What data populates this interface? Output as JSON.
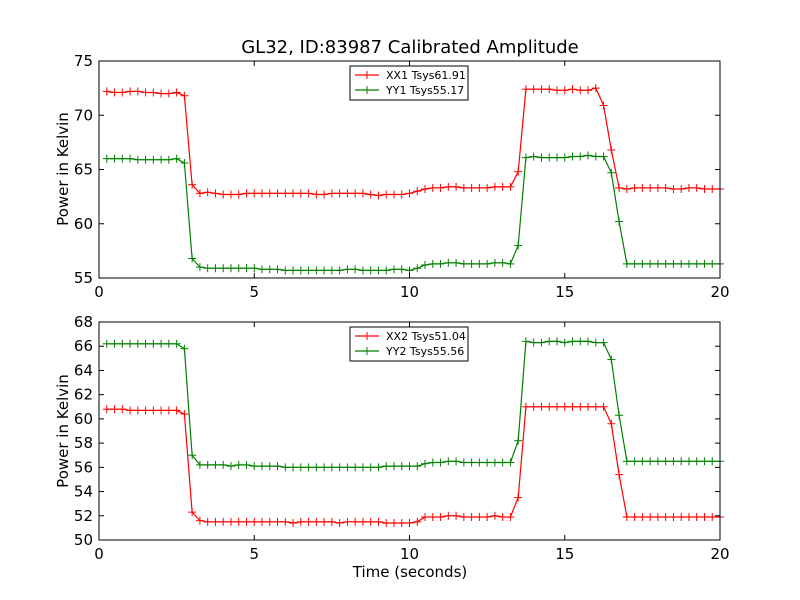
{
  "chart_data": [
    {
      "type": "line",
      "title": "GL32, ID:83987 Calibrated Amplitude",
      "xlabel": "",
      "ylabel": "Power in Kelvin",
      "xlim": [
        0,
        20
      ],
      "ylim": [
        55,
        75
      ],
      "xticks": [
        "0",
        "5",
        "10",
        "15",
        "20"
      ],
      "yticks": [
        "55",
        "60",
        "65",
        "70",
        "75"
      ],
      "legend_position": "top-center",
      "series": [
        {
          "name": "XX1 Tsys61.91",
          "color": "#ff0000",
          "x": [
            0.25,
            0.5,
            0.75,
            1.0,
            1.25,
            1.5,
            1.75,
            2.0,
            2.25,
            2.5,
            2.75,
            3.0,
            3.25,
            3.5,
            3.75,
            4.0,
            4.25,
            4.5,
            4.75,
            5.0,
            5.25,
            5.5,
            5.75,
            6.0,
            6.25,
            6.5,
            6.75,
            7.0,
            7.25,
            7.5,
            7.75,
            8.0,
            8.25,
            8.5,
            8.75,
            9.0,
            9.25,
            9.5,
            9.75,
            10.0,
            10.25,
            10.5,
            10.75,
            11.0,
            11.25,
            11.5,
            11.75,
            12.0,
            12.25,
            12.5,
            12.75,
            13.0,
            13.25,
            13.5,
            13.75,
            14.0,
            14.25,
            14.5,
            14.75,
            15.0,
            15.25,
            15.5,
            15.75,
            16.0,
            16.25,
            16.5,
            16.75,
            17.0,
            17.25,
            17.5,
            17.75,
            18.0,
            18.25,
            18.5,
            18.75,
            19.0,
            19.25,
            19.5,
            19.75,
            20.0
          ],
          "values": [
            72.2,
            72.1,
            72.1,
            72.2,
            72.2,
            72.1,
            72.1,
            72.0,
            72.0,
            72.1,
            71.8,
            63.6,
            62.8,
            62.9,
            62.8,
            62.7,
            62.7,
            62.7,
            62.8,
            62.8,
            62.8,
            62.8,
            62.8,
            62.8,
            62.8,
            62.8,
            62.8,
            62.7,
            62.7,
            62.8,
            62.8,
            62.8,
            62.8,
            62.8,
            62.7,
            62.6,
            62.7,
            62.7,
            62.7,
            62.8,
            63.0,
            63.2,
            63.3,
            63.3,
            63.4,
            63.4,
            63.3,
            63.3,
            63.3,
            63.3,
            63.4,
            63.4,
            63.4,
            64.8,
            72.4,
            72.4,
            72.4,
            72.4,
            72.3,
            72.3,
            72.4,
            72.3,
            72.3,
            72.5,
            70.9,
            66.8,
            63.3,
            63.2,
            63.3,
            63.3,
            63.3,
            63.3,
            63.3,
            63.2,
            63.2,
            63.3,
            63.3,
            63.2,
            63.2,
            63.2
          ]
        },
        {
          "name": "YY1 Tsys55.17",
          "color": "#008000",
          "x": [
            0.25,
            0.5,
            0.75,
            1.0,
            1.25,
            1.5,
            1.75,
            2.0,
            2.25,
            2.5,
            2.75,
            3.0,
            3.25,
            3.5,
            3.75,
            4.0,
            4.25,
            4.5,
            4.75,
            5.0,
            5.25,
            5.5,
            5.75,
            6.0,
            6.25,
            6.5,
            6.75,
            7.0,
            7.25,
            7.5,
            7.75,
            8.0,
            8.25,
            8.5,
            8.75,
            9.0,
            9.25,
            9.5,
            9.75,
            10.0,
            10.25,
            10.5,
            10.75,
            11.0,
            11.25,
            11.5,
            11.75,
            12.0,
            12.25,
            12.5,
            12.75,
            13.0,
            13.25,
            13.5,
            13.75,
            14.0,
            14.25,
            14.5,
            14.75,
            15.0,
            15.25,
            15.5,
            15.75,
            16.0,
            16.25,
            16.5,
            16.75,
            17.0,
            17.25,
            17.5,
            17.75,
            18.0,
            18.25,
            18.5,
            18.75,
            19.0,
            19.25,
            19.5,
            19.75,
            20.0
          ],
          "values": [
            66.0,
            66.0,
            66.0,
            66.0,
            65.9,
            65.9,
            65.9,
            65.9,
            65.9,
            66.0,
            65.6,
            56.8,
            56.0,
            55.9,
            55.9,
            55.9,
            55.9,
            55.9,
            55.9,
            55.9,
            55.8,
            55.8,
            55.8,
            55.7,
            55.7,
            55.7,
            55.7,
            55.7,
            55.7,
            55.7,
            55.7,
            55.8,
            55.8,
            55.7,
            55.7,
            55.7,
            55.7,
            55.8,
            55.8,
            55.7,
            55.9,
            56.2,
            56.3,
            56.3,
            56.4,
            56.4,
            56.3,
            56.3,
            56.3,
            56.3,
            56.4,
            56.4,
            56.3,
            58.0,
            66.1,
            66.2,
            66.1,
            66.1,
            66.1,
            66.1,
            66.2,
            66.2,
            66.3,
            66.2,
            66.2,
            64.7,
            60.2,
            56.3,
            56.3,
            56.3,
            56.3,
            56.3,
            56.3,
            56.3,
            56.3,
            56.3,
            56.3,
            56.3,
            56.3,
            56.3
          ]
        }
      ]
    },
    {
      "type": "line",
      "title": "",
      "xlabel": "Time (seconds)",
      "ylabel": "Power in Kelvin",
      "xlim": [
        0,
        20
      ],
      "ylim": [
        50,
        68
      ],
      "xticks": [
        "0",
        "5",
        "10",
        "15",
        "20"
      ],
      "yticks": [
        "50",
        "52",
        "54",
        "56",
        "58",
        "60",
        "62",
        "64",
        "66",
        "68"
      ],
      "legend_position": "top-center",
      "series": [
        {
          "name": "XX2 Tsys51.04",
          "color": "#ff0000",
          "x": [
            0.25,
            0.5,
            0.75,
            1.0,
            1.25,
            1.5,
            1.75,
            2.0,
            2.25,
            2.5,
            2.75,
            3.0,
            3.25,
            3.5,
            3.75,
            4.0,
            4.25,
            4.5,
            4.75,
            5.0,
            5.25,
            5.5,
            5.75,
            6.0,
            6.25,
            6.5,
            6.75,
            7.0,
            7.25,
            7.5,
            7.75,
            8.0,
            8.25,
            8.5,
            8.75,
            9.0,
            9.25,
            9.5,
            9.75,
            10.0,
            10.25,
            10.5,
            10.75,
            11.0,
            11.25,
            11.5,
            11.75,
            12.0,
            12.25,
            12.5,
            12.75,
            13.0,
            13.25,
            13.5,
            13.75,
            14.0,
            14.25,
            14.5,
            14.75,
            15.0,
            15.25,
            15.5,
            15.75,
            16.0,
            16.25,
            16.5,
            16.75,
            17.0,
            17.25,
            17.5,
            17.75,
            18.0,
            18.25,
            18.5,
            18.75,
            19.0,
            19.25,
            19.5,
            19.75,
            20.0
          ],
          "values": [
            60.8,
            60.8,
            60.8,
            60.7,
            60.7,
            60.7,
            60.7,
            60.7,
            60.7,
            60.7,
            60.4,
            52.3,
            51.6,
            51.5,
            51.5,
            51.5,
            51.5,
            51.5,
            51.5,
            51.5,
            51.5,
            51.5,
            51.5,
            51.5,
            51.4,
            51.5,
            51.5,
            51.5,
            51.5,
            51.5,
            51.4,
            51.5,
            51.5,
            51.5,
            51.5,
            51.5,
            51.4,
            51.4,
            51.4,
            51.4,
            51.5,
            51.9,
            51.9,
            51.9,
            52.0,
            52.0,
            51.9,
            51.9,
            51.9,
            51.9,
            52.0,
            51.9,
            51.9,
            53.5,
            61.0,
            61.0,
            61.0,
            61.0,
            61.0,
            61.0,
            61.0,
            61.0,
            61.0,
            61.0,
            61.0,
            59.6,
            55.4,
            51.9,
            51.9,
            51.9,
            51.9,
            51.9,
            51.9,
            51.9,
            51.9,
            51.9,
            51.9,
            51.9,
            51.9,
            51.9
          ]
        },
        {
          "name": "YY2 Tsys55.56",
          "color": "#008000",
          "x": [
            0.25,
            0.5,
            0.75,
            1.0,
            1.25,
            1.5,
            1.75,
            2.0,
            2.25,
            2.5,
            2.75,
            3.0,
            3.25,
            3.5,
            3.75,
            4.0,
            4.25,
            4.5,
            4.75,
            5.0,
            5.25,
            5.5,
            5.75,
            6.0,
            6.25,
            6.5,
            6.75,
            7.0,
            7.25,
            7.5,
            7.75,
            8.0,
            8.25,
            8.5,
            8.75,
            9.0,
            9.25,
            9.5,
            9.75,
            10.0,
            10.25,
            10.5,
            10.75,
            11.0,
            11.25,
            11.5,
            11.75,
            12.0,
            12.25,
            12.5,
            12.75,
            13.0,
            13.25,
            13.5,
            13.75,
            14.0,
            14.25,
            14.5,
            14.75,
            15.0,
            15.25,
            15.5,
            15.75,
            16.0,
            16.25,
            16.5,
            16.75,
            17.0,
            17.25,
            17.5,
            17.75,
            18.0,
            18.25,
            18.5,
            18.75,
            19.0,
            19.25,
            19.5,
            19.75,
            20.0
          ],
          "values": [
            66.2,
            66.2,
            66.2,
            66.2,
            66.2,
            66.2,
            66.2,
            66.2,
            66.2,
            66.2,
            65.8,
            57.0,
            56.2,
            56.2,
            56.2,
            56.2,
            56.1,
            56.2,
            56.2,
            56.1,
            56.1,
            56.1,
            56.1,
            56.0,
            56.0,
            56.0,
            56.0,
            56.0,
            56.0,
            56.0,
            56.0,
            56.0,
            56.0,
            56.0,
            56.0,
            56.0,
            56.1,
            56.1,
            56.1,
            56.1,
            56.1,
            56.3,
            56.4,
            56.4,
            56.5,
            56.5,
            56.4,
            56.4,
            56.4,
            56.4,
            56.4,
            56.4,
            56.4,
            58.2,
            66.4,
            66.3,
            66.3,
            66.4,
            66.4,
            66.3,
            66.4,
            66.4,
            66.4,
            66.3,
            66.3,
            64.9,
            60.3,
            56.5,
            56.5,
            56.5,
            56.5,
            56.5,
            56.5,
            56.5,
            56.5,
            56.5,
            56.5,
            56.5,
            56.5,
            56.5
          ]
        }
      ]
    }
  ]
}
